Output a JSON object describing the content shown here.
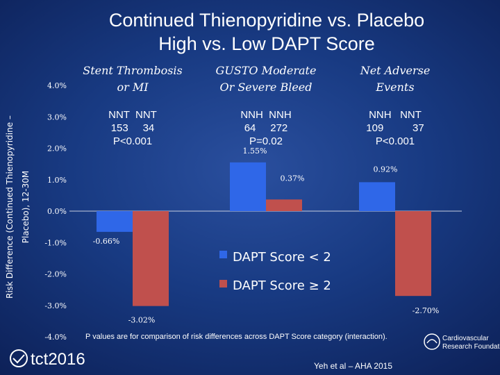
{
  "title_line1": "Continued Thienopyridine vs. Placebo",
  "title_line2": "High vs. Low DAPT Score",
  "chart_data": {
    "type": "bar",
    "ylabel_line1": "Risk Difference (Continued Thienopyridine –",
    "ylabel_line2": "Placebo), 12-30M",
    "ylim": [
      -4.0,
      4.0
    ],
    "yticks": [
      4.0,
      3.0,
      2.0,
      1.0,
      0.0,
      -1.0,
      -2.0,
      -3.0,
      -4.0
    ],
    "ytick_labels": [
      "4.0%",
      "3.0%",
      "2.0%",
      "1.0%",
      "0.0%",
      "-1.0%",
      "-2.0%",
      "-3.0%",
      "-4.0%"
    ],
    "categories": [
      {
        "line1": "Stent Thrombosis",
        "line2": "or MI"
      },
      {
        "line1": "GUSTO Moderate",
        "line2": "Or Severe Bleed"
      },
      {
        "line1": "Net Adverse",
        "line2": "Events"
      }
    ],
    "series": [
      {
        "name": "DAPT Score < 2",
        "color": "#2f67e8",
        "values": [
          -0.66,
          1.55,
          0.92
        ],
        "labels": [
          "-0.66%",
          "1.55%",
          "0.92%"
        ]
      },
      {
        "name": "DAPT Score ≥ 2",
        "color": "#c0504d",
        "values": [
          -3.02,
          0.37,
          -2.7
        ],
        "labels": [
          "-3.02%",
          "0.37%",
          "-2.70%"
        ]
      }
    ],
    "annotations": [
      {
        "line1": "NNT  NNT",
        "line2": "153     34",
        "line3": "P<0.001"
      },
      {
        "line1": "NNH  NNH",
        "line2": "64     272",
        "line3": "P=0.02"
      },
      {
        "line1": "NNH   NNT",
        "line2": "109          37",
        "line3": "P<0.001"
      }
    ],
    "legend_position": "lower-middle"
  },
  "footnote": "P values are for comparison of risk differences across DAPT Score category (interaction).",
  "citation": "Yeh et al – AHA 2015",
  "logo_left": "tct2016",
  "logo_right_line1": "Cardiovascular",
  "logo_right_line2": "Research Foundation"
}
